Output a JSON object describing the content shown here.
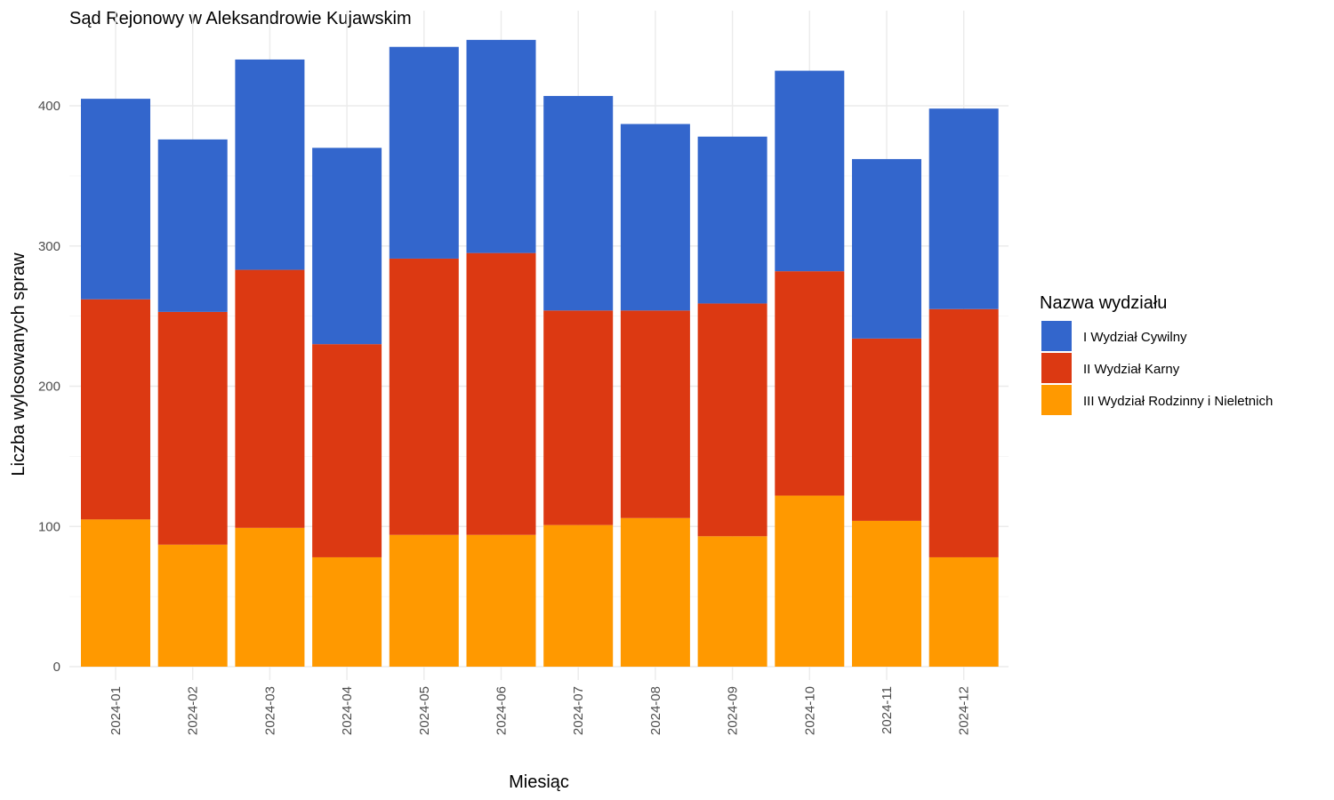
{
  "chart_data": {
    "type": "bar",
    "stacked": true,
    "title": "Sąd Rejonowy w Aleksandrowie Kujawskim",
    "xlabel": "Miesiąc",
    "ylabel": "Liczba wylosowanych spraw",
    "categories": [
      "2024-01",
      "2024-02",
      "2024-03",
      "2024-04",
      "2024-05",
      "2024-06",
      "2024-07",
      "2024-08",
      "2024-09",
      "2024-10",
      "2024-11",
      "2024-12"
    ],
    "ylim": [
      0,
      450
    ],
    "yticks": [
      0,
      100,
      200,
      300,
      400
    ],
    "grid": true,
    "legend": {
      "title": "Nazwa wydziału",
      "position": "right"
    },
    "series": [
      {
        "name": "III Wydział Rodzinny i Nieletnich",
        "color": "#FF9900",
        "values": [
          105,
          87,
          99,
          78,
          94,
          94,
          101,
          106,
          93,
          122,
          104,
          78
        ]
      },
      {
        "name": "II Wydział Karny",
        "color": "#DC3912",
        "values": [
          157,
          166,
          184,
          152,
          197,
          201,
          153,
          148,
          166,
          160,
          130,
          177
        ]
      },
      {
        "name": "I Wydział Cywilny",
        "color": "#3366CC",
        "values": [
          143,
          123,
          150,
          140,
          151,
          152,
          153,
          133,
          119,
          143,
          128,
          143
        ]
      }
    ],
    "legend_order": [
      "I Wydział Cywilny",
      "II Wydział Karny",
      "III Wydział Rodzinny i Nieletnich"
    ]
  }
}
